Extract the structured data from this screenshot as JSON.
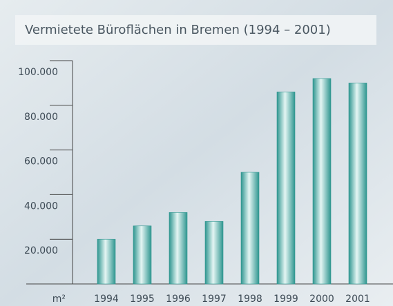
{
  "chart_data": {
    "type": "bar",
    "title": "Vermietete Büroflächen in Bremen (1994 – 2001)",
    "y_unit": "m²",
    "categories": [
      "1994",
      "1995",
      "1996",
      "1997",
      "1998",
      "1999",
      "2000",
      "2001"
    ],
    "values": [
      20000,
      26000,
      32000,
      28000,
      50000,
      86000,
      92000,
      90000
    ],
    "color": "#2f9690",
    "ylim": [
      0,
      100000
    ],
    "yticks": [
      {
        "value": 20000,
        "label": "20.000"
      },
      {
        "value": 40000,
        "label": "40.000"
      },
      {
        "value": 60000,
        "label": "60.000"
      },
      {
        "value": 80000,
        "label": "80.000"
      },
      {
        "value": 100000,
        "label": "100.000"
      }
    ]
  }
}
